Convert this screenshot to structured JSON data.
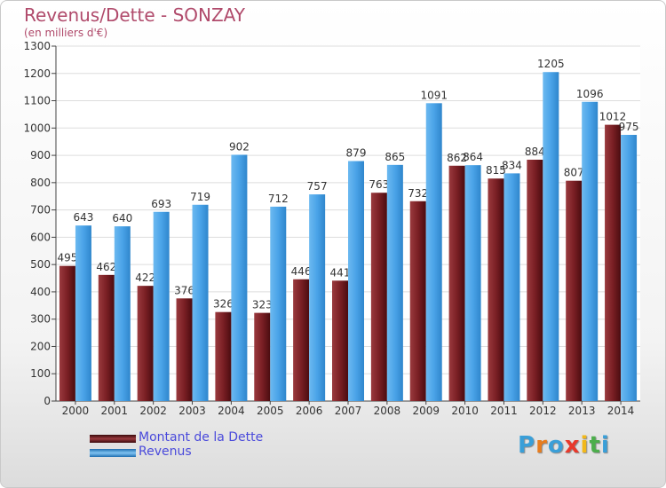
{
  "chart_data": {
    "type": "bar",
    "title": "Revenus/Dette - SONZAY",
    "subtitle": "(en milliers d'€)",
    "categories": [
      "2000",
      "2001",
      "2002",
      "2003",
      "2004",
      "2005",
      "2006",
      "2007",
      "2008",
      "2009",
      "2010",
      "2011",
      "2012",
      "2013",
      "2014"
    ],
    "series": [
      {
        "name": "Montant de la Dette",
        "color": "#7a1f24",
        "values": [
          495,
          462,
          422,
          376,
          326,
          323,
          446,
          441,
          763,
          732,
          862,
          815,
          884,
          807,
          1012
        ]
      },
      {
        "name": "Revenus",
        "color": "#4aa3e8",
        "values": [
          643,
          640,
          693,
          719,
          902,
          712,
          757,
          879,
          865,
          1091,
          864,
          834,
          1205,
          1096,
          975
        ]
      }
    ],
    "ylim": [
      0,
      1300
    ],
    "yticks": [
      0,
      100,
      200,
      300,
      400,
      500,
      600,
      700,
      800,
      900,
      1000,
      1100,
      1200,
      1300
    ],
    "grid": true,
    "legend_position": "bottom-left"
  },
  "logo": {
    "letters": [
      "P",
      "r",
      "o",
      "x",
      "i",
      "t",
      "i"
    ],
    "colors": [
      "#3a9fd8",
      "#e87d1e",
      "#3a9fd8",
      "#e8392b",
      "#f2b81a",
      "#4cae4c",
      "#3a9fd8"
    ]
  }
}
